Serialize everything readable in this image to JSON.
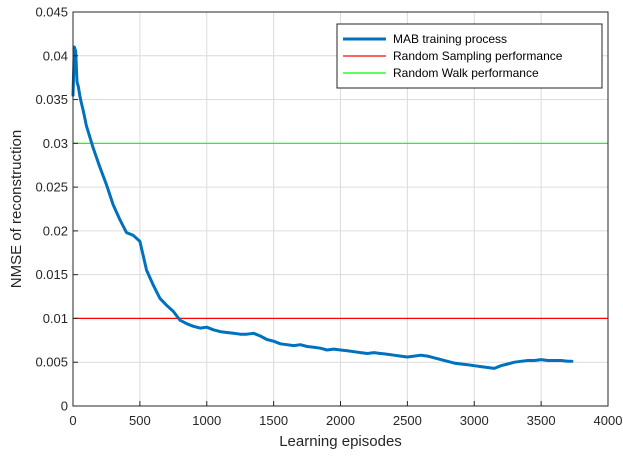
{
  "chart_data": {
    "type": "line",
    "title": "",
    "xlabel": "Learning episodes",
    "ylabel": "NMSE of reconstruction",
    "xlim": [
      0,
      4000
    ],
    "ylim": [
      0,
      0.045
    ],
    "xticks": [
      0,
      500,
      1000,
      1500,
      2000,
      2500,
      3000,
      3500,
      4000
    ],
    "yticks": [
      0,
      0.005,
      0.01,
      0.015,
      0.02,
      0.025,
      0.03,
      0.035,
      0.04,
      0.045
    ],
    "xtick_labels": [
      "0",
      "500",
      "1000",
      "1500",
      "2000",
      "2500",
      "3000",
      "3500",
      "4000"
    ],
    "ytick_labels": [
      "0",
      "0.005",
      "0.01",
      "0.015",
      "0.02",
      "0.025",
      "0.03",
      "0.035",
      "0.04",
      "0.045"
    ],
    "grid": true,
    "legend_position": "top-right",
    "series": [
      {
        "name": "MAB training process",
        "color": "#0072BD",
        "x": [
          0,
          10,
          20,
          30,
          40,
          50,
          60,
          80,
          100,
          150,
          200,
          250,
          300,
          350,
          400,
          450,
          500,
          550,
          600,
          650,
          700,
          750,
          800,
          850,
          900,
          950,
          1000,
          1050,
          1100,
          1150,
          1200,
          1250,
          1300,
          1350,
          1400,
          1450,
          1500,
          1550,
          1600,
          1650,
          1700,
          1750,
          1800,
          1850,
          1900,
          1950,
          2000,
          2050,
          2100,
          2150,
          2200,
          2250,
          2300,
          2350,
          2400,
          2450,
          2500,
          2550,
          2600,
          2650,
          2700,
          2750,
          2800,
          2850,
          2900,
          2950,
          3000,
          3050,
          3100,
          3150,
          3200,
          3250,
          3300,
          3350,
          3400,
          3450,
          3500,
          3550,
          3600,
          3650,
          3700,
          3730
        ],
        "y": [
          0.0355,
          0.041,
          0.0405,
          0.037,
          0.0365,
          0.0355,
          0.0348,
          0.0335,
          0.032,
          0.0295,
          0.0273,
          0.0253,
          0.023,
          0.0213,
          0.0198,
          0.0195,
          0.0188,
          0.0155,
          0.0138,
          0.0123,
          0.0115,
          0.0108,
          0.0098,
          0.0094,
          0.0091,
          0.0089,
          0.009,
          0.0087,
          0.0085,
          0.0084,
          0.0083,
          0.0082,
          0.0082,
          0.0083,
          0.008,
          0.0076,
          0.0074,
          0.0071,
          0.007,
          0.0069,
          0.007,
          0.0068,
          0.0067,
          0.0066,
          0.0064,
          0.0065,
          0.0064,
          0.0063,
          0.0062,
          0.0061,
          0.006,
          0.0061,
          0.006,
          0.0059,
          0.0058,
          0.0057,
          0.0056,
          0.0057,
          0.0058,
          0.0057,
          0.0055,
          0.0053,
          0.0051,
          0.0049,
          0.0048,
          0.0047,
          0.0046,
          0.0045,
          0.0044,
          0.0043,
          0.0046,
          0.0048,
          0.005,
          0.0051,
          0.0052,
          0.0052,
          0.0053,
          0.0052,
          0.0052,
          0.0052,
          0.0051,
          0.0051
        ]
      },
      {
        "name": "Random Sampling performance",
        "color": "#FF0000",
        "x": [
          0,
          4000
        ],
        "y": [
          0.01,
          0.01
        ]
      },
      {
        "name": "Random Walk performance",
        "color": "#00FF00",
        "x": [
          0,
          4000
        ],
        "y": [
          0.03,
          0.03
        ]
      }
    ]
  }
}
